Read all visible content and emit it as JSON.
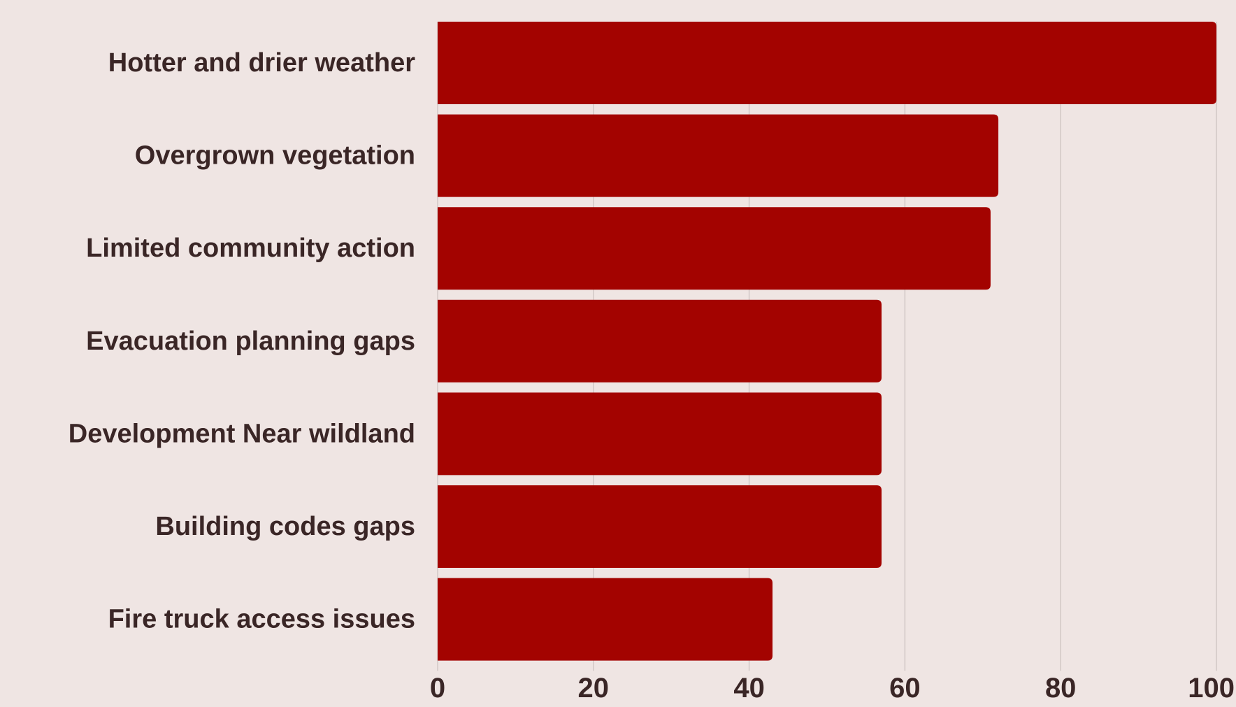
{
  "chart_data": {
    "type": "bar",
    "orientation": "horizontal",
    "categories": [
      "Hotter and drier weather",
      "Overgrown vegetation",
      "Limited community action",
      "Evacuation planning gaps",
      "Development Near wildland",
      "Building codes gaps",
      "Fire truck access issues"
    ],
    "values": [
      100,
      72,
      71,
      57,
      57,
      57,
      43
    ],
    "xlim": [
      0,
      100
    ],
    "xticks": [
      "0",
      "20",
      "40",
      "60",
      "80",
      "100"
    ],
    "grid": true,
    "legend": "none",
    "title": "",
    "xlabel": "",
    "ylabel": ""
  },
  "colors": {
    "bar": "#a30300",
    "background": "#efe5e3",
    "text": "#3a2626",
    "grid": "#d2c8c6"
  }
}
